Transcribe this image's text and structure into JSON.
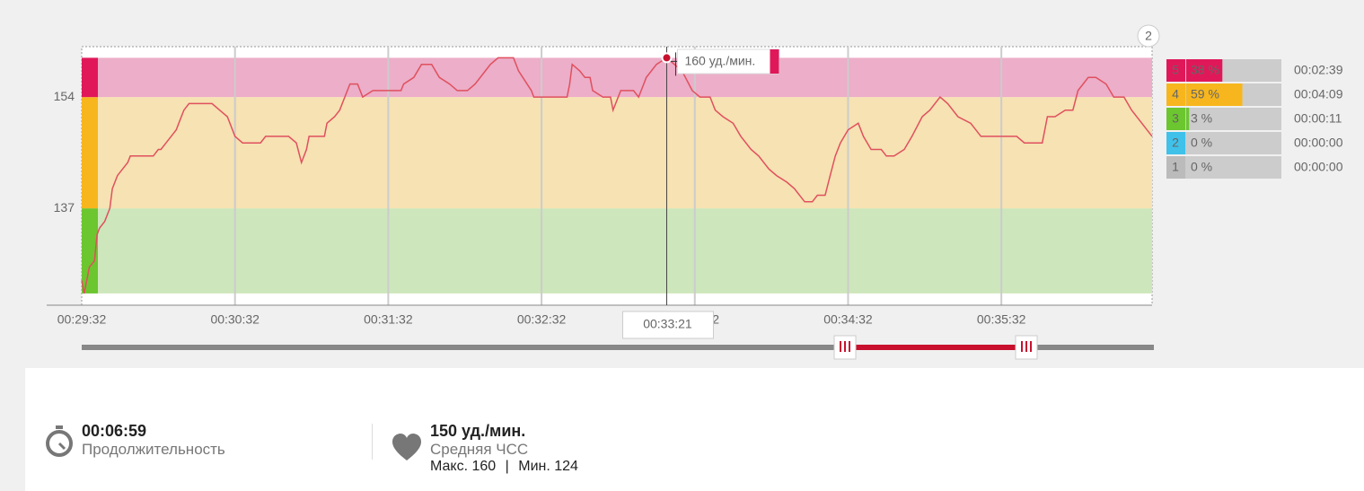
{
  "chart_data": {
    "type": "line",
    "x": [
      0,
      1,
      3,
      5,
      6,
      7,
      9,
      11,
      12,
      14,
      16,
      18,
      19,
      24,
      28,
      30,
      31,
      33,
      35,
      37,
      38,
      40,
      42,
      51,
      54,
      57,
      60,
      63,
      70,
      72,
      81,
      84,
      86,
      88,
      89,
      95,
      96,
      99,
      101,
      103,
      105,
      108,
      110,
      114,
      125,
      126,
      130,
      133,
      137,
      140,
      144,
      147,
      151,
      154,
      158,
      160,
      163,
      169,
      171,
      176,
      177,
      190,
      191,
      192,
      195,
      197,
      199,
      200,
      204,
      207,
      208,
      211,
      216,
      218,
      220,
      221,
      225,
      229,
      232,
      235,
      239,
      242,
      246,
      248,
      251,
      255,
      258,
      262,
      265,
      269,
      272,
      276,
      279,
      283,
      286,
      288,
      291,
      293,
      295,
      297,
      300,
      304,
      306,
      309,
      313,
      315,
      318,
      322,
      325,
      329,
      332,
      336,
      339,
      343,
      348,
      352,
      357,
      359,
      366,
      369,
      376,
      378,
      381,
      385,
      388,
      390,
      394,
      397,
      401,
      404,
      408,
      411,
      415,
      419
    ],
    "values": [
      126,
      124,
      128,
      129,
      133,
      134,
      135,
      137,
      140,
      142,
      143,
      144,
      145,
      145,
      145,
      146,
      146,
      147,
      148,
      149,
      150,
      152,
      153,
      153,
      152,
      151,
      148,
      147,
      147,
      148,
      148,
      147,
      144,
      146,
      148,
      148,
      150,
      151,
      152,
      154,
      156,
      156,
      154,
      155,
      155,
      156,
      157,
      159,
      159,
      157,
      156,
      155,
      155,
      156,
      158,
      159,
      160,
      160,
      158,
      155,
      154,
      154,
      156,
      159,
      158,
      157,
      157,
      155,
      154,
      154,
      152,
      155,
      155,
      154,
      156,
      157,
      159,
      160,
      159,
      158,
      155,
      154,
      154,
      152,
      151,
      150,
      148,
      146,
      145,
      143,
      142,
      141,
      140,
      138,
      138,
      139,
      139,
      142,
      145,
      147,
      149,
      150,
      148,
      146,
      146,
      145,
      145,
      146,
      148,
      151,
      152,
      154,
      153,
      151,
      150,
      148,
      148,
      148,
      148,
      147,
      147,
      151,
      151,
      152,
      152,
      155,
      157,
      157,
      156,
      154,
      154,
      152,
      150,
      148
    ],
    "color": "#e0505f",
    "xlim": [
      0,
      419
    ],
    "ylim": [
      122.2,
      161.7
    ],
    "xticks": [
      {
        "value": 0,
        "label": "00:29:32"
      },
      {
        "value": 60,
        "label": "00:30:32"
      },
      {
        "value": 120,
        "label": "00:31:32"
      },
      {
        "value": 180,
        "label": "00:32:32"
      },
      {
        "value": 240,
        "label": "00:33:32"
      },
      {
        "value": 300,
        "label": "00:34:32"
      },
      {
        "value": 360,
        "label": "00:35:32"
      }
    ],
    "yticks": [
      137,
      154
    ],
    "grid": true,
    "zones": [
      {
        "from": 124,
        "to": 137,
        "color": "#cde6bb",
        "strip": "#6cc62f"
      },
      {
        "from": 137,
        "to": 154,
        "color": "#f6e2b2",
        "strip": "#f7b61d"
      },
      {
        "from": 154,
        "to": 160,
        "color": "#ecaec8",
        "strip": "#e0185a"
      }
    ],
    "cursor": {
      "x": 229,
      "x_label": "00:33:21",
      "value": 160,
      "value_label": "160 уд./мин."
    },
    "badge": "2"
  },
  "zone_table": [
    {
      "zone": "5",
      "percent": 38,
      "percent_label": "38 %",
      "time": "00:02:39",
      "color": "#e0185a"
    },
    {
      "zone": "4",
      "percent": 59,
      "percent_label": "59 %",
      "time": "00:04:09",
      "color": "#f7b61d"
    },
    {
      "zone": "3",
      "percent": 3,
      "percent_label": "3 %",
      "time": "00:00:11",
      "color": "#6cc62f"
    },
    {
      "zone": "2",
      "percent": 0,
      "percent_label": "0 %",
      "time": "00:00:00",
      "color": "#3fc1ea"
    },
    {
      "zone": "1",
      "percent": 0,
      "percent_label": "0 %",
      "time": "00:00:00",
      "color": "#bbbbbb"
    }
  ],
  "summary": {
    "duration": "00:06:59",
    "duration_label": "Продолжительность",
    "avg_hr": "150 уд./мин.",
    "avg_hr_label": "Средняя ЧСС",
    "max": "Макс. 160",
    "separator": "|",
    "min": "Мин. 124"
  }
}
